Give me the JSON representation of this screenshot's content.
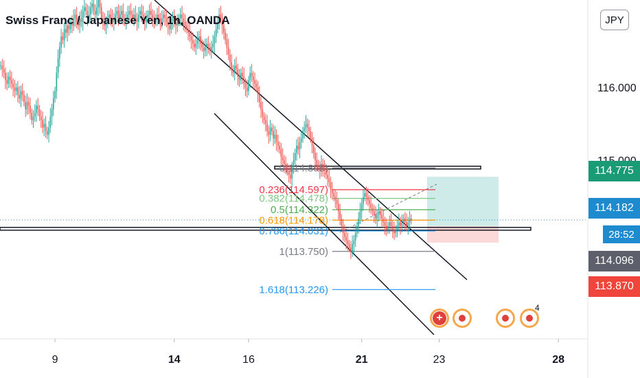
{
  "header": {
    "title": "Swiss Franc / Japanese Yen, 1h, OANDA",
    "currency_button": "JPY"
  },
  "price_tags": [
    {
      "label": "114.775",
      "color": "#1a9b76"
    },
    {
      "label": "114.182",
      "color": "#1e8bcf"
    },
    {
      "label": "28:52",
      "color": "#1e8bcf"
    },
    {
      "label": "114.096",
      "color": "#5d606b"
    },
    {
      "label": "113.870",
      "color": "#f0453a"
    }
  ],
  "chart_data": {
    "type": "candlestick",
    "symbol": "CHFJPY",
    "timeframe": "1h",
    "exchange": "OANDA",
    "y_axis": {
      "ticks": [
        116.0,
        115.0,
        114.775,
        114.182,
        114.096,
        113.87
      ],
      "tick_labels": [
        "116.000",
        "115.000",
        "114.775",
        "114.182",
        "114.096",
        "113.870"
      ],
      "range": [
        112.55,
        117.2
      ]
    },
    "x_axis": {
      "tick_labels": [
        "9",
        "14",
        "16",
        "21",
        "23",
        "28"
      ],
      "tick_bold": [
        false,
        true,
        false,
        true,
        false,
        true
      ],
      "tick_index": [
        35,
        112,
        160,
        233,
        283,
        360
      ]
    },
    "close_series": [
      116.3,
      116.25,
      116.2,
      116.1,
      116.05,
      116.15,
      116.1,
      116.05,
      116.0,
      115.95,
      116.0,
      115.9,
      115.85,
      115.95,
      115.9,
      115.8,
      115.7,
      115.8,
      115.75,
      115.65,
      115.55,
      115.6,
      115.65,
      115.75,
      115.7,
      115.6,
      115.55,
      115.45,
      115.5,
      115.4,
      115.35,
      115.45,
      115.6,
      115.7,
      115.85,
      115.95,
      116.2,
      116.4,
      116.55,
      116.7,
      116.65,
      116.8,
      116.75,
      116.85,
      116.8,
      116.9,
      116.85,
      116.95,
      117.0,
      116.9,
      116.85,
      116.95,
      116.9,
      117.05,
      117.1,
      117.05,
      116.95,
      117.0,
      117.1,
      117.15,
      117.05,
      117.0,
      117.1,
      117.2,
      117.1,
      116.95,
      116.9,
      116.85,
      116.9,
      116.95,
      117.0,
      116.95,
      116.9,
      116.95,
      117.0,
      117.05,
      116.95,
      117.0,
      117.05,
      116.95,
      116.9,
      116.95,
      117.0,
      117.05,
      117.0,
      116.95,
      117.0,
      116.95,
      116.9,
      117.0,
      117.05,
      117.0,
      116.95,
      116.9,
      116.95,
      117.0,
      117.05,
      117.0,
      116.95,
      116.9,
      116.95,
      117.0,
      116.95,
      116.9,
      116.95,
      117.0,
      116.95,
      116.9,
      116.85,
      116.8,
      116.9,
      116.95,
      116.9,
      116.85,
      116.9,
      116.95,
      117.0,
      116.95,
      116.9,
      116.85,
      116.8,
      116.75,
      116.7,
      116.65,
      116.6,
      116.55,
      116.6,
      116.65,
      116.7,
      116.6,
      116.55,
      116.5,
      116.55,
      116.6,
      116.55,
      116.5,
      116.55,
      116.6,
      116.7,
      116.8,
      116.9,
      117.0,
      116.95,
      116.85,
      116.75,
      116.65,
      116.55,
      116.45,
      116.35,
      116.25,
      116.2,
      116.3,
      116.25,
      116.15,
      116.1,
      116.2,
      116.15,
      116.05,
      116.0,
      115.95,
      116.1,
      116.2,
      116.15,
      116.1,
      116.05,
      116.0,
      115.9,
      115.8,
      115.7,
      115.6,
      115.55,
      115.5,
      115.4,
      115.35,
      115.45,
      115.4,
      115.3,
      115.35,
      115.25,
      115.2,
      115.15,
      115.05,
      115.0,
      114.95,
      114.9,
      114.85,
      114.8,
      114.75,
      114.9,
      115.0,
      115.1,
      115.2,
      115.15,
      115.25,
      115.3,
      115.4,
      115.45,
      115.5,
      115.45,
      115.4,
      115.3,
      115.2,
      115.1,
      115.0,
      114.95,
      114.9,
      114.85,
      114.95,
      114.9,
      114.85,
      114.8,
      114.75,
      114.7,
      114.6,
      114.55,
      114.5,
      114.45,
      114.4,
      114.3,
      114.2,
      114.1,
      114.0,
      113.95,
      113.9,
      113.85,
      113.8,
      113.75,
      113.85,
      113.9,
      114.0,
      114.1,
      114.2,
      114.3,
      114.4,
      114.5,
      114.55,
      114.5,
      114.45,
      114.4,
      114.35,
      114.3,
      114.25,
      114.2,
      114.25,
      114.3,
      114.25,
      114.2,
      114.15,
      114.1,
      114.05,
      114.1,
      114.15,
      114.1,
      114.05,
      114.0,
      114.05,
      114.1,
      114.15,
      114.1,
      114.15,
      114.2,
      114.15,
      114.1,
      114.15,
      114.2,
      114.18
    ],
    "fibonacci": [
      {
        "level": "0",
        "value": 114.895,
        "label": "0(114.895)",
        "color": "#787b86"
      },
      {
        "level": "0.236",
        "value": 114.597,
        "label": "0.236(114.597)",
        "color": "#f23645"
      },
      {
        "level": "0.382",
        "value": 114.478,
        "label": "0.382(114.478)",
        "color": "#81c784"
      },
      {
        "level": "0.5",
        "value": 114.322,
        "label": "0.5(114.322)",
        "color": "#4caf50"
      },
      {
        "level": "0.618",
        "value": 114.178,
        "label": "0.618(114.178)",
        "color": "#ff9800"
      },
      {
        "level": "0.786",
        "value": 114.031,
        "label": "0.786(114.031)",
        "color": "#2196f3"
      },
      {
        "level": "1",
        "value": 113.75,
        "label": "1(113.750)",
        "color": "#787b86"
      },
      {
        "level": "1.618",
        "value": 113.226,
        "label": "1.618(113.226)",
        "color": "#2196f3"
      }
    ],
    "horizontal_lines": [
      114.9,
      114.06
    ],
    "current_price": 114.182,
    "position": {
      "entry": 114.096,
      "target": 114.775,
      "stop": 113.87
    },
    "events": [
      {
        "type": "plus"
      },
      {
        "type": "dot"
      },
      {
        "type": "dot"
      },
      {
        "type": "dot",
        "count": "4"
      }
    ]
  }
}
